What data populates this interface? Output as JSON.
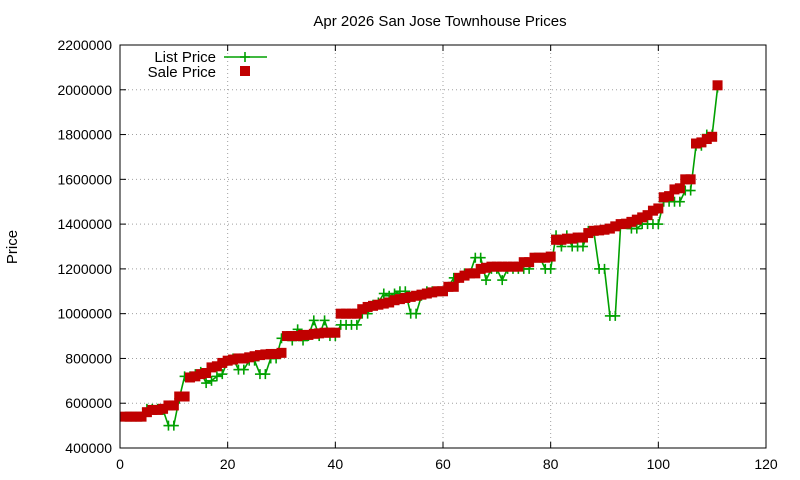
{
  "chart_data": {
    "type": "line",
    "title": "Apr 2026 San Jose Townhouse Prices",
    "xlabel": "",
    "ylabel": "Price",
    "xlim": [
      0,
      120
    ],
    "ylim": [
      400000,
      2200000
    ],
    "xticks": [
      0,
      20,
      40,
      60,
      80,
      100,
      120
    ],
    "yticks": [
      400000,
      600000,
      800000,
      1000000,
      1200000,
      1400000,
      1600000,
      1800000,
      2000000,
      2200000
    ],
    "grid": true,
    "legend_position": "top-left",
    "series": [
      {
        "name": "List Price",
        "style": "lines+crosses",
        "color": "#00a000",
        "x": [
          1,
          2,
          3,
          4,
          5,
          6,
          7,
          8,
          9,
          10,
          11,
          12,
          13,
          14,
          15,
          16,
          17,
          18,
          19,
          20,
          21,
          22,
          23,
          24,
          25,
          26,
          27,
          28,
          29,
          30,
          31,
          32,
          33,
          34,
          35,
          36,
          37,
          38,
          39,
          40,
          41,
          42,
          43,
          44,
          45,
          46,
          47,
          48,
          49,
          50,
          51,
          52,
          53,
          54,
          55,
          56,
          57,
          58,
          59,
          60,
          61,
          62,
          63,
          64,
          65,
          66,
          67,
          68,
          69,
          70,
          71,
          72,
          73,
          74,
          75,
          76,
          77,
          78,
          79,
          80,
          81,
          82,
          83,
          84,
          85,
          86,
          87,
          88,
          89,
          90,
          91,
          92,
          93,
          94,
          95,
          96,
          97,
          98,
          99,
          100,
          101,
          102,
          103,
          104,
          105,
          106,
          107,
          108,
          109,
          110,
          111
        ],
        "y": [
          540000,
          540000,
          540000,
          540000,
          575000,
          575000,
          575000,
          570000,
          500000,
          500000,
          620000,
          720000,
          720000,
          730000,
          740000,
          690000,
          700000,
          720000,
          730000,
          790000,
          800000,
          750000,
          750000,
          790000,
          790000,
          730000,
          730000,
          800000,
          800000,
          890000,
          900000,
          880000,
          930000,
          880000,
          900000,
          970000,
          900000,
          970000,
          900000,
          900000,
          950000,
          950000,
          950000,
          950000,
          1000000,
          1000000,
          1040000,
          1050000,
          1090000,
          1080000,
          1090000,
          1100000,
          1100000,
          1000000,
          1000000,
          1080000,
          1100000,
          1100000,
          1100000,
          1100000,
          1120000,
          1160000,
          1160000,
          1180000,
          1180000,
          1250000,
          1250000,
          1150000,
          1200000,
          1200000,
          1150000,
          1200000,
          1200000,
          1200000,
          1200000,
          1200000,
          1250000,
          1250000,
          1200000,
          1200000,
          1350000,
          1300000,
          1350000,
          1300000,
          1300000,
          1300000,
          1370000,
          1370000,
          1200000,
          1200000,
          990000,
          990000,
          1400000,
          1400000,
          1380000,
          1380000,
          1400000,
          1400000,
          1400000,
          1400000,
          1500000,
          1500000,
          1500000,
          1500000,
          1550000,
          1550000,
          1750000,
          1750000,
          1800000,
          1800000,
          2010000
        ]
      },
      {
        "name": "Sale Price",
        "style": "squares",
        "color": "#c00000",
        "x": [
          1,
          2,
          3,
          4,
          5,
          6,
          7,
          8,
          9,
          10,
          11,
          12,
          13,
          14,
          15,
          16,
          17,
          18,
          19,
          20,
          21,
          22,
          23,
          24,
          25,
          26,
          27,
          28,
          29,
          30,
          31,
          32,
          33,
          34,
          35,
          36,
          37,
          38,
          39,
          40,
          41,
          42,
          43,
          44,
          45,
          46,
          47,
          48,
          49,
          50,
          51,
          52,
          53,
          54,
          55,
          56,
          57,
          58,
          59,
          60,
          61,
          62,
          63,
          64,
          65,
          66,
          67,
          68,
          69,
          70,
          71,
          72,
          73,
          74,
          75,
          76,
          77,
          78,
          79,
          80,
          81,
          82,
          83,
          84,
          85,
          86,
          87,
          88,
          89,
          90,
          91,
          92,
          93,
          94,
          95,
          96,
          97,
          98,
          99,
          100,
          101,
          102,
          103,
          104,
          105,
          106,
          107,
          108,
          109,
          110,
          111
        ],
        "y": [
          540000,
          540000,
          540000,
          540000,
          560000,
          570000,
          570000,
          575000,
          590000,
          590000,
          630000,
          630000,
          715000,
          720000,
          730000,
          735000,
          760000,
          765000,
          780000,
          790000,
          795000,
          800000,
          800000,
          805000,
          810000,
          815000,
          818000,
          820000,
          820000,
          825000,
          900000,
          900000,
          900000,
          905000,
          905000,
          910000,
          912000,
          915000,
          915000,
          915000,
          1000000,
          1000000,
          1000000,
          1000000,
          1020000,
          1030000,
          1035000,
          1040000,
          1045000,
          1050000,
          1060000,
          1065000,
          1070000,
          1075000,
          1080000,
          1085000,
          1090000,
          1095000,
          1100000,
          1100000,
          1120000,
          1120000,
          1160000,
          1170000,
          1180000,
          1180000,
          1200000,
          1205000,
          1210000,
          1210000,
          1210000,
          1210000,
          1210000,
          1210000,
          1230000,
          1230000,
          1250000,
          1250000,
          1250000,
          1255000,
          1330000,
          1330000,
          1335000,
          1335000,
          1340000,
          1340000,
          1360000,
          1370000,
          1372000,
          1375000,
          1380000,
          1390000,
          1400000,
          1402000,
          1410000,
          1420000,
          1430000,
          1440000,
          1460000,
          1470000,
          1520000,
          1525000,
          1555000,
          1560000,
          1600000,
          1600000,
          1760000,
          1765000,
          1780000,
          1790000,
          2020000
        ]
      }
    ]
  }
}
